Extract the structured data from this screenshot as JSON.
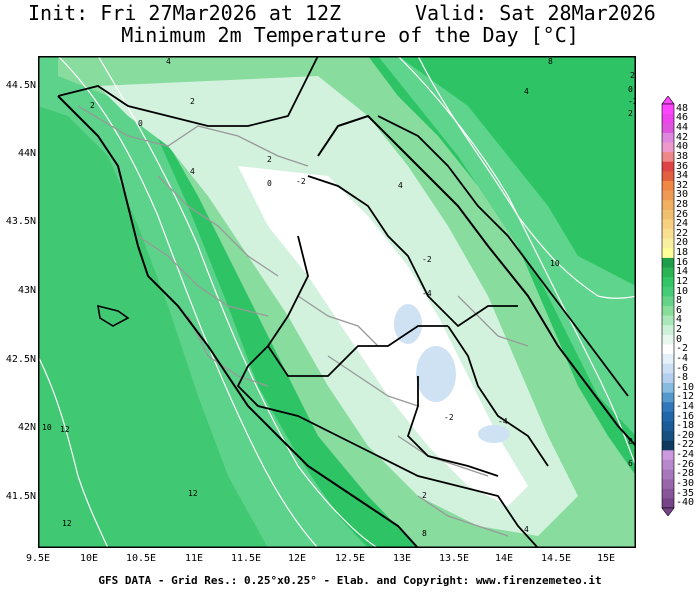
{
  "header": {
    "init": "Init: Fri 27Mar2026 at 12Z",
    "valid": "Valid: Sat 28Mar2026",
    "subtitle": "Minimum 2m Temperature of the Day [°C]"
  },
  "axes": {
    "lat_labels": [
      "44.5N",
      "44N",
      "43.5N",
      "43N",
      "42.5N",
      "42N",
      "41.5N"
    ],
    "lon_labels": [
      "9.5E",
      "10E",
      "10.5E",
      "11E",
      "11.5E",
      "12E",
      "12.5E",
      "13E",
      "13.5E",
      "14E",
      "14.5E",
      "15E"
    ]
  },
  "contour_labels": [
    "4",
    "2",
    "2",
    "0",
    "4",
    "2",
    "0",
    "-2",
    "4",
    "-2",
    "-4",
    "10",
    "2",
    "-2",
    "-4",
    "10",
    "12",
    "12",
    "12",
    "2",
    "8",
    "4",
    "6",
    "8",
    "0",
    "-2",
    "2",
    "4",
    "8"
  ],
  "colorbar": {
    "labels": [
      "48",
      "46",
      "44",
      "42",
      "40",
      "38",
      "36",
      "34",
      "32",
      "30",
      "28",
      "26",
      "24",
      "22",
      "20",
      "18",
      "16",
      "14",
      "12",
      "10",
      "8",
      "6",
      "4",
      "2",
      "0",
      "-2",
      "-4",
      "-6",
      "-8",
      "-10",
      "-12",
      "-14",
      "-16",
      "-18",
      "-20",
      "-22",
      "-24",
      "-26",
      "-28",
      "-30",
      "-35",
      "-40"
    ],
    "colors": [
      "#ff44ff",
      "#ee44ee",
      "#dd55dd",
      "#dd88dd",
      "#ee99cc",
      "#ee8888",
      "#dd4444",
      "#e06040",
      "#ee8844",
      "#ee9955",
      "#f0b060",
      "#f0c070",
      "#f8d080",
      "#f8e090",
      "#f8f0a0",
      "#ffff99",
      "#1e9e4a",
      "#2bb456",
      "#33c466",
      "#44cc77",
      "#66d488",
      "#88dd99",
      "#aae8bb",
      "#ccf0d8",
      "#e8f8ee",
      "#ffffff",
      "#e4f0fa",
      "#cce0f4",
      "#b4d0ee",
      "#88bbe0",
      "#5599cc",
      "#3377bb",
      "#2266aa",
      "#1a5a96",
      "#155080",
      "#0e3a60",
      "#cc99dd",
      "#b888cc",
      "#a877bb",
      "#9966aa",
      "#885599",
      "#774488"
    ]
  },
  "footer": {
    "credit": "GFS DATA - Grid Res.: 0.25°x0.25° - Elab. and Copyright: www.firenzemeteo.it"
  },
  "colors": {
    "sea_warm": "#2ec466",
    "land_mild": "#88dc9e",
    "land_cool": "#d2f2de",
    "ridge_cold": "#ffffff",
    "frost_pocket": "#cfe2f4"
  }
}
